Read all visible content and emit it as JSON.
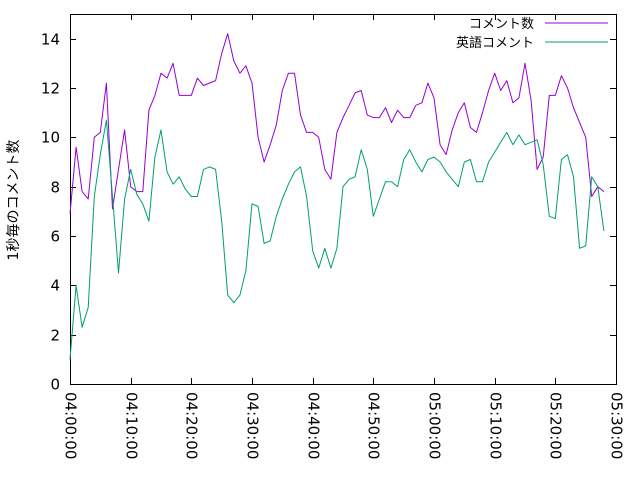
{
  "chart_data": {
    "type": "line",
    "ylabel": "1秒毎のコメント数",
    "xlabel": "",
    "ylim": [
      0,
      15
    ],
    "yticks": [
      "0",
      "2",
      "4",
      "6",
      "8",
      "10",
      "12",
      "14"
    ],
    "xlim": [
      "04:00:00",
      "05:30:00"
    ],
    "xticks": [
      "04:00:00",
      "04:10:00",
      "04:20:00",
      "04:30:00",
      "04:40:00",
      "04:50:00",
      "05:00:00",
      "05:10:00",
      "05:20:00",
      "05:30:00"
    ],
    "legend_position": "top-right",
    "grid": false,
    "sample_interval": "1 minute",
    "x": [
      "04:00:00",
      "04:01:00",
      "04:02:00",
      "04:03:00",
      "04:04:00",
      "04:05:00",
      "04:06:00",
      "04:07:00",
      "04:08:00",
      "04:09:00",
      "04:10:00",
      "04:11:00",
      "04:12:00",
      "04:13:00",
      "04:14:00",
      "04:15:00",
      "04:16:00",
      "04:17:00",
      "04:18:00",
      "04:19:00",
      "04:20:00",
      "04:21:00",
      "04:22:00",
      "04:23:00",
      "04:24:00",
      "04:25:00",
      "04:26:00",
      "04:27:00",
      "04:28:00",
      "04:29:00",
      "04:30:00",
      "04:31:00",
      "04:32:00",
      "04:33:00",
      "04:34:00",
      "04:35:00",
      "04:36:00",
      "04:37:00",
      "04:38:00",
      "04:39:00",
      "04:40:00",
      "04:41:00",
      "04:42:00",
      "04:43:00",
      "04:44:00",
      "04:45:00",
      "04:46:00",
      "04:47:00",
      "04:48:00",
      "04:49:00",
      "04:50:00",
      "04:51:00",
      "04:52:00",
      "04:53:00",
      "04:54:00",
      "04:55:00",
      "04:56:00",
      "04:57:00",
      "04:58:00",
      "04:59:00",
      "05:00:00",
      "05:01:00",
      "05:02:00",
      "05:03:00",
      "05:04:00",
      "05:05:00",
      "05:06:00",
      "05:07:00",
      "05:08:00",
      "05:09:00",
      "05:10:00",
      "05:11:00",
      "05:12:00",
      "05:13:00",
      "05:14:00",
      "05:15:00",
      "05:16:00",
      "05:17:00",
      "05:18:00",
      "05:19:00",
      "05:20:00",
      "05:21:00",
      "05:22:00",
      "05:23:00",
      "05:24:00",
      "05:25:00",
      "05:26:00",
      "05:27:00",
      "05:28:00"
    ],
    "series": [
      {
        "name": "コメント数",
        "color": "#9400d3",
        "values": [
          6.9,
          9.6,
          7.8,
          7.5,
          10.0,
          10.2,
          12.2,
          7.1,
          8.7,
          10.3,
          8.0,
          7.8,
          7.8,
          11.1,
          11.7,
          12.6,
          12.4,
          13.0,
          11.7,
          11.7,
          11.7,
          12.4,
          12.1,
          12.2,
          12.3,
          13.4,
          14.2,
          13.1,
          12.6,
          12.9,
          12.2,
          10.0,
          9.0,
          9.7,
          10.5,
          11.9,
          12.6,
          12.6,
          10.9,
          10.2,
          10.2,
          10.0,
          8.7,
          8.3,
          10.2,
          10.8,
          11.3,
          11.8,
          11.9,
          10.9,
          10.8,
          10.8,
          11.2,
          10.6,
          11.1,
          10.8,
          10.8,
          11.3,
          11.4,
          12.2,
          11.6,
          9.7,
          9.3,
          10.3,
          11.0,
          11.4,
          10.4,
          10.2,
          11.0,
          11.9,
          12.6,
          11.9,
          12.3,
          11.4,
          11.6,
          13.0,
          11.5,
          8.7,
          9.2,
          11.7,
          11.7,
          12.5,
          12.0,
          11.2,
          10.6,
          10.0,
          7.6,
          8.0,
          7.8
        ]
      },
      {
        "name": "英語コメント",
        "color": "#009e73",
        "values": [
          1.0,
          4.0,
          2.3,
          3.1,
          7.6,
          9.3,
          10.7,
          7.6,
          4.5,
          7.5,
          8.7,
          7.7,
          7.3,
          6.6,
          9.2,
          10.3,
          8.6,
          8.1,
          8.4,
          7.9,
          7.6,
          7.6,
          8.7,
          8.8,
          8.7,
          6.6,
          3.6,
          3.3,
          3.6,
          4.6,
          7.3,
          7.2,
          5.7,
          5.8,
          6.8,
          7.5,
          8.1,
          8.6,
          8.8,
          7.6,
          5.4,
          4.7,
          5.5,
          4.7,
          5.5,
          8.0,
          8.3,
          8.4,
          9.5,
          8.7,
          6.8,
          7.5,
          8.2,
          8.2,
          8.0,
          9.1,
          9.5,
          9.0,
          8.6,
          9.1,
          9.2,
          9.0,
          8.6,
          8.3,
          8.0,
          9.0,
          9.1,
          8.2,
          8.2,
          9.0,
          9.4,
          9.8,
          10.2,
          9.7,
          10.1,
          9.7,
          9.8,
          9.9,
          8.9,
          6.8,
          6.7,
          9.1,
          9.3,
          8.4,
          5.5,
          5.6,
          8.4,
          8.0,
          6.2
        ]
      }
    ]
  }
}
